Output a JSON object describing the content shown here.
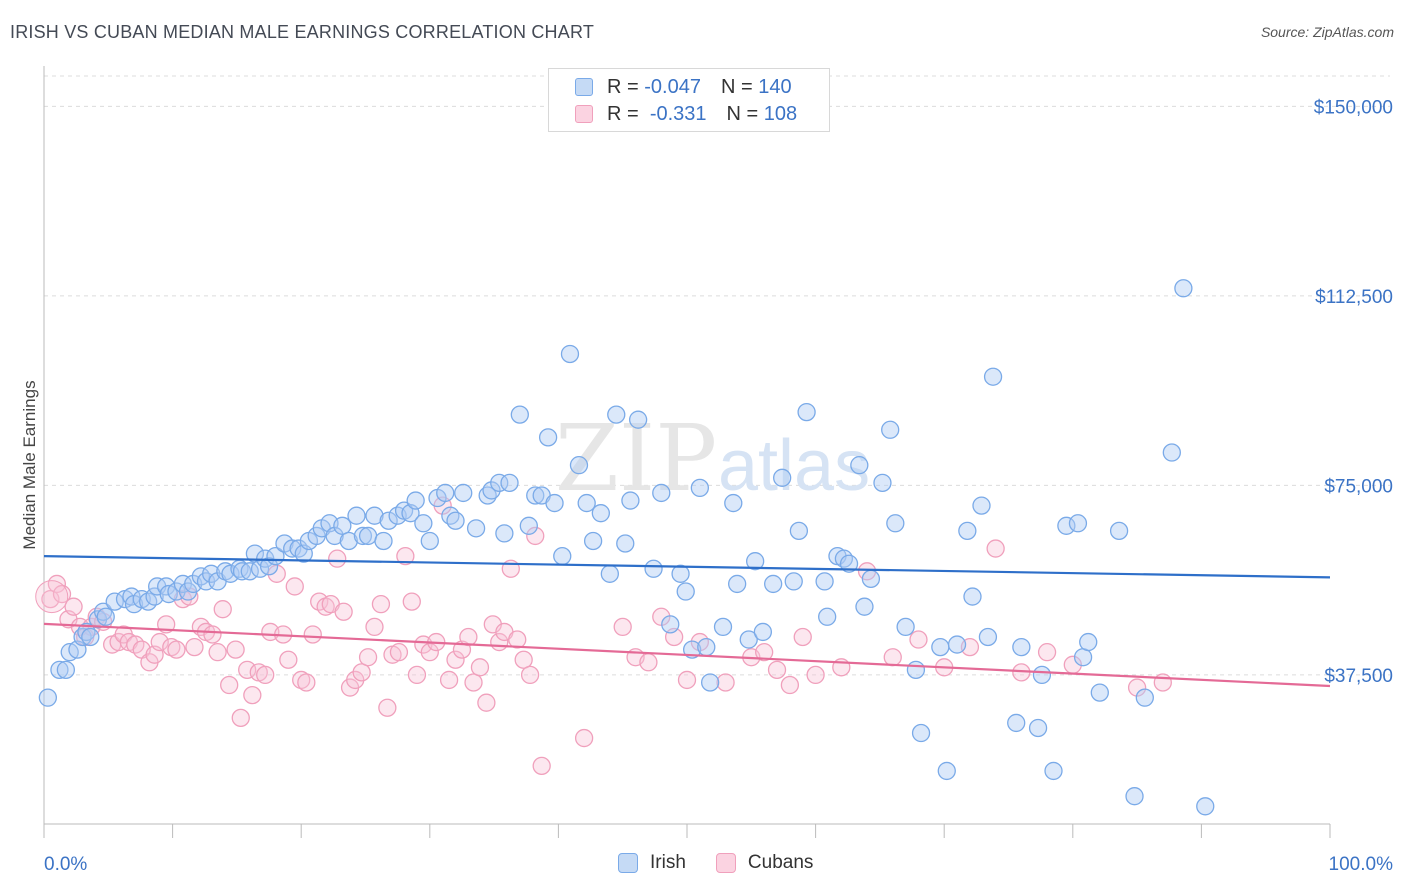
{
  "header": {
    "title": "IRISH VS CUBAN MEDIAN MALE EARNINGS CORRELATION CHART",
    "source": "Source: ZipAtlas.com"
  },
  "legend": {
    "irish": {
      "r_label": "R =",
      "r_value": "-0.047",
      "n_label": "N =",
      "n_value": "140"
    },
    "cubans": {
      "r_label": "R =",
      "r_value": "-0.331",
      "n_label": "N =",
      "n_value": "108"
    }
  },
  "bottom_legend": {
    "irish": "Irish",
    "cubans": "Cubans"
  },
  "watermark": {
    "zip": "ZIP",
    "atlas": "atlas"
  },
  "chart_data": {
    "type": "scatter",
    "title": "IRISH VS CUBAN MEDIAN MALE EARNINGS CORRELATION CHART",
    "ylabel": "Median Male Earnings",
    "xlim": [
      0,
      100
    ],
    "ylim": [
      8000,
      156000
    ],
    "x_tick_labels": [
      "0.0%",
      "100.0%"
    ],
    "y_ticks": [
      37500,
      75000,
      112500,
      150000
    ],
    "y_tick_labels": [
      "$37,500",
      "$75,000",
      "$112,500",
      "$150,000"
    ],
    "grid": "dashed horizontal",
    "colors": {
      "irish": "#7aaae8",
      "irish_line": "#2e6fc9",
      "cubans": "#f0a0bc",
      "cubans_line": "#e46a96",
      "tick_text": "#3b73c5"
    },
    "series": [
      {
        "name": "Irish",
        "trend": {
          "x": [
            0,
            100
          ],
          "y": [
            61000,
            56800
          ]
        },
        "points": [
          [
            0.3,
            33
          ],
          [
            1.2,
            38.5
          ],
          [
            1.7,
            38.5
          ],
          [
            2,
            42
          ],
          [
            2.6,
            42.5
          ],
          [
            3,
            45
          ],
          [
            3.3,
            46
          ],
          [
            3.6,
            45
          ],
          [
            4.2,
            48.5
          ],
          [
            4.6,
            50
          ],
          [
            4.8,
            49
          ],
          [
            5.5,
            52
          ],
          [
            6.3,
            52.5
          ],
          [
            6.8,
            53
          ],
          [
            7,
            51.5
          ],
          [
            7.6,
            52.5
          ],
          [
            8.1,
            52
          ],
          [
            8.6,
            53
          ],
          [
            8.8,
            55
          ],
          [
            9.5,
            55
          ],
          [
            9.7,
            53.5
          ],
          [
            10.3,
            54
          ],
          [
            10.8,
            55.5
          ],
          [
            11.2,
            54
          ],
          [
            11.6,
            55.5
          ],
          [
            12.2,
            57
          ],
          [
            12.6,
            56
          ],
          [
            13,
            57.5
          ],
          [
            13.5,
            56
          ],
          [
            14.1,
            58
          ],
          [
            14.5,
            57.5
          ],
          [
            15.2,
            58.5
          ],
          [
            15.4,
            58
          ],
          [
            16,
            58
          ],
          [
            16.4,
            61.5
          ],
          [
            16.8,
            58.5
          ],
          [
            17.2,
            60.5
          ],
          [
            17.5,
            59
          ],
          [
            18,
            61
          ],
          [
            18.7,
            63.5
          ],
          [
            19.3,
            62.5
          ],
          [
            19.8,
            62.5
          ],
          [
            20.2,
            61.5
          ],
          [
            20.6,
            64
          ],
          [
            21.2,
            65
          ],
          [
            21.6,
            66.5
          ],
          [
            22.2,
            67.5
          ],
          [
            22.6,
            65
          ],
          [
            23.2,
            67
          ],
          [
            23.7,
            64
          ],
          [
            24.3,
            69
          ],
          [
            24.8,
            65
          ],
          [
            25.2,
            65
          ],
          [
            25.7,
            69
          ],
          [
            26.4,
            64
          ],
          [
            26.8,
            68
          ],
          [
            27.5,
            69
          ],
          [
            28,
            70
          ],
          [
            28.5,
            69.5
          ],
          [
            28.9,
            72
          ],
          [
            29.5,
            67.5
          ],
          [
            30,
            64
          ],
          [
            30.6,
            72.5
          ],
          [
            31.2,
            73.5
          ],
          [
            31.6,
            69
          ],
          [
            32,
            68
          ],
          [
            32.6,
            73.5
          ],
          [
            33.6,
            66.5
          ],
          [
            34.5,
            73
          ],
          [
            34.8,
            74
          ],
          [
            35.4,
            75.5
          ],
          [
            35.8,
            65.5
          ],
          [
            36.2,
            75.5
          ],
          [
            37,
            89
          ],
          [
            37.7,
            67
          ],
          [
            38.2,
            73
          ],
          [
            38.7,
            73
          ],
          [
            39.2,
            84.5
          ],
          [
            39.7,
            71.5
          ],
          [
            40.3,
            61
          ],
          [
            40.9,
            101
          ],
          [
            41.6,
            79
          ],
          [
            42.2,
            71.5
          ],
          [
            42.7,
            64
          ],
          [
            43.3,
            69.5
          ],
          [
            44,
            57.5
          ],
          [
            44.5,
            89
          ],
          [
            45.2,
            63.5
          ],
          [
            45.6,
            72
          ],
          [
            46.2,
            88
          ],
          [
            47.4,
            58.5
          ],
          [
            48,
            73.5
          ],
          [
            48.7,
            47.5
          ],
          [
            49.5,
            57.5
          ],
          [
            49.9,
            54
          ],
          [
            50.4,
            42.5
          ],
          [
            51,
            74.5
          ],
          [
            51.5,
            43
          ],
          [
            51.8,
            36
          ],
          [
            52.8,
            47
          ],
          [
            53.6,
            71.5
          ],
          [
            53.9,
            55.5
          ],
          [
            54.8,
            44.5
          ],
          [
            55.3,
            60
          ],
          [
            55.9,
            46
          ],
          [
            56.7,
            55.5
          ],
          [
            57.4,
            76.5
          ],
          [
            58.3,
            56
          ],
          [
            58.7,
            66
          ],
          [
            59.3,
            89.5
          ],
          [
            60.7,
            56
          ],
          [
            60.9,
            49
          ],
          [
            61.7,
            61
          ],
          [
            62.2,
            60.5
          ],
          [
            62.6,
            59.5
          ],
          [
            63.4,
            79
          ],
          [
            63.8,
            51
          ],
          [
            64.3,
            56.5
          ],
          [
            65.2,
            75.5
          ],
          [
            65.8,
            86
          ],
          [
            66.2,
            67.5
          ],
          [
            67,
            47
          ],
          [
            67.8,
            38.5
          ],
          [
            68.2,
            26
          ],
          [
            69.7,
            43
          ],
          [
            70.2,
            18.5
          ],
          [
            71,
            43.5
          ],
          [
            71.8,
            66
          ],
          [
            72.2,
            53
          ],
          [
            72.9,
            71
          ],
          [
            73.4,
            45
          ],
          [
            73.8,
            96.5
          ],
          [
            75.6,
            28
          ],
          [
            76,
            43
          ],
          [
            77.3,
            27
          ],
          [
            77.6,
            37.5
          ],
          [
            78.5,
            18.5
          ],
          [
            79.5,
            67
          ],
          [
            80.4,
            67.5
          ],
          [
            80.8,
            41
          ],
          [
            81.2,
            44
          ],
          [
            82.1,
            34
          ],
          [
            83.6,
            66
          ],
          [
            84.8,
            13.5
          ],
          [
            85.6,
            33
          ],
          [
            87.7,
            81.5
          ],
          [
            88.6,
            114
          ],
          [
            90.3,
            11.5
          ]
        ]
      },
      {
        "name": "Cubans",
        "trend": {
          "x": [
            0,
            100
          ],
          "y": [
            47600,
            35300
          ]
        },
        "points": [
          [
            0.5,
            52.5
          ],
          [
            1,
            55.5
          ],
          [
            1.4,
            53.5
          ],
          [
            1.9,
            48.5
          ],
          [
            2.3,
            51
          ],
          [
            2.8,
            47
          ],
          [
            3.2,
            45
          ],
          [
            3.7,
            47
          ],
          [
            4.1,
            49
          ],
          [
            4.6,
            48
          ],
          [
            5.3,
            43.5
          ],
          [
            5.8,
            44
          ],
          [
            6.2,
            45.5
          ],
          [
            6.6,
            44
          ],
          [
            7.1,
            43.5
          ],
          [
            7.6,
            42.5
          ],
          [
            8.2,
            40
          ],
          [
            8.6,
            41.5
          ],
          [
            9,
            44
          ],
          [
            9.5,
            47.5
          ],
          [
            9.9,
            43
          ],
          [
            10.3,
            42.5
          ],
          [
            10.8,
            52.5
          ],
          [
            11.3,
            53
          ],
          [
            11.7,
            43
          ],
          [
            12.2,
            47
          ],
          [
            12.6,
            46
          ],
          [
            13.1,
            45.5
          ],
          [
            13.5,
            42
          ],
          [
            13.9,
            50.5
          ],
          [
            14.4,
            35.5
          ],
          [
            14.9,
            42.5
          ],
          [
            15.3,
            29
          ],
          [
            15.8,
            38.5
          ],
          [
            16.2,
            33.5
          ],
          [
            16.7,
            38
          ],
          [
            17.2,
            37.5
          ],
          [
            17.6,
            46
          ],
          [
            18.1,
            57.5
          ],
          [
            18.6,
            45.5
          ],
          [
            19,
            40.5
          ],
          [
            19.5,
            55
          ],
          [
            20,
            36.5
          ],
          [
            20.4,
            36
          ],
          [
            20.9,
            45.5
          ],
          [
            21.4,
            52
          ],
          [
            21.9,
            51
          ],
          [
            22.3,
            51.5
          ],
          [
            22.8,
            60.5
          ],
          [
            23.3,
            50
          ],
          [
            23.8,
            35
          ],
          [
            24.2,
            36.5
          ],
          [
            24.7,
            38
          ],
          [
            25.2,
            41
          ],
          [
            25.7,
            47
          ],
          [
            26.2,
            51.5
          ],
          [
            26.7,
            31
          ],
          [
            27.1,
            41.5
          ],
          [
            27.6,
            42
          ],
          [
            28.1,
            61
          ],
          [
            28.6,
            52
          ],
          [
            29,
            37.5
          ],
          [
            29.5,
            43.5
          ],
          [
            30,
            42
          ],
          [
            30.5,
            44
          ],
          [
            31,
            71
          ],
          [
            31.5,
            36.5
          ],
          [
            32,
            40.5
          ],
          [
            32.5,
            42.5
          ],
          [
            33,
            45
          ],
          [
            33.4,
            36
          ],
          [
            33.9,
            39
          ],
          [
            34.4,
            32
          ],
          [
            34.9,
            47.5
          ],
          [
            35.4,
            44
          ],
          [
            35.8,
            46
          ],
          [
            36.3,
            58.5
          ],
          [
            36.8,
            44.5
          ],
          [
            37.3,
            40.5
          ],
          [
            37.8,
            37.5
          ],
          [
            38.2,
            65
          ],
          [
            38.7,
            19.5
          ],
          [
            42,
            25
          ],
          [
            45,
            47
          ],
          [
            46,
            41
          ],
          [
            47,
            40
          ],
          [
            48,
            49
          ],
          [
            49,
            45
          ],
          [
            50,
            36.5
          ],
          [
            51,
            44
          ],
          [
            53,
            36
          ],
          [
            55,
            41
          ],
          [
            56,
            42
          ],
          [
            57,
            38.5
          ],
          [
            58,
            35.5
          ],
          [
            59,
            45
          ],
          [
            60,
            37.5
          ],
          [
            62,
            39
          ],
          [
            64,
            58
          ],
          [
            66,
            41
          ],
          [
            68,
            44.5
          ],
          [
            70,
            39
          ],
          [
            72,
            43
          ],
          [
            74,
            62.5
          ],
          [
            76,
            38
          ],
          [
            78,
            42
          ],
          [
            80,
            39.5
          ],
          [
            85,
            35
          ],
          [
            87,
            36
          ]
        ]
      }
    ]
  }
}
